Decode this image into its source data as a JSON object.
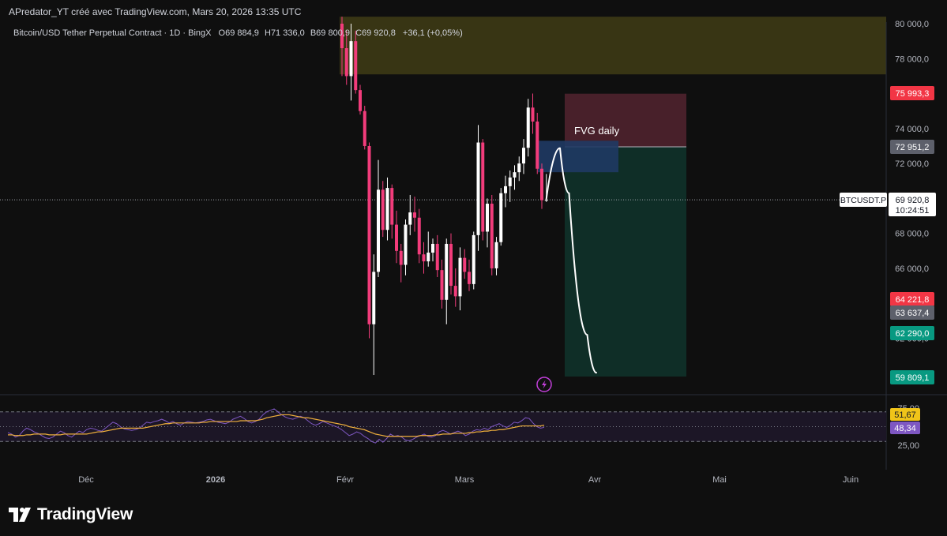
{
  "header": {
    "author_line": "APredator_YT créé avec TradingView.com, Mars 20, 2026 13:35 UTC"
  },
  "symbol_info": {
    "title": "Bitcoin/USD Tether Perpetual Contract · 1D · BingX",
    "o_label": "O",
    "o_value": "69 884,9",
    "h_label": "H",
    "h_value": "71 336,0",
    "b_label": "B",
    "b_value": "69 800,9",
    "c_label": "C",
    "c_value": "69 920,8",
    "change": "+36,1 (+0,05%)"
  },
  "annotations": {
    "fvg_label": "FVG daily"
  },
  "price_labels": {
    "top": "75 993,3",
    "mid": "72 951,2",
    "symbol": "BTCUSDT.P",
    "current": "69 920,8",
    "countdown": "10:24:51",
    "red2": "64 221,8",
    "gray2": "63 637,4",
    "green1": "62 290,0",
    "green2": "59 809,1"
  },
  "rsi": {
    "value_ma": "51,67",
    "value_rsi": "48,34"
  },
  "brand": {
    "logo_text": "TradingView",
    "logo_icon": "tradingview-logo-icon"
  },
  "colors": {
    "background": "#0f0f0f",
    "up_candle": "#ffffff",
    "down_candle": "#f23c7b",
    "stop_zone": "#4a1a24",
    "target_zone": "#0f2e27",
    "supply_zone": "#3d3a14",
    "fvg_box": "#1e3559",
    "rsi_line": "#7e57c2",
    "rsi_ma": "#f0b03c"
  },
  "chart_data": {
    "type": "candlestick",
    "symbol": "BTCUSDT.P",
    "timeframe": "1D",
    "exchange": "BingX",
    "price_axis_ticks": [
      "80 000,0",
      "78 000,0",
      "74 000,0",
      "72 000,0",
      "68 000,0",
      "66 000,0",
      "62 000,0",
      "60 000,0"
    ],
    "price_axis_values": [
      80000,
      78000,
      74000,
      72000,
      68000,
      66000,
      62000,
      60000
    ],
    "time_axis_labels": [
      "Déc",
      "2026",
      "Févr",
      "Mars",
      "Avr",
      "Mai",
      "Juin"
    ],
    "ylim": [
      57500,
      80400
    ],
    "candles_date_range": [
      "2026-01-28",
      "2026-03-20"
    ],
    "candles": [
      {
        "o": 80000,
        "h": 80400,
        "l": 77000,
        "c": 78600
      },
      {
        "o": 78600,
        "h": 79600,
        "l": 76500,
        "c": 77000
      },
      {
        "o": 77000,
        "h": 80000,
        "l": 75600,
        "c": 79000
      },
      {
        "o": 79000,
        "h": 79600,
        "l": 76000,
        "c": 76200
      },
      {
        "o": 76200,
        "h": 76500,
        "l": 74800,
        "c": 75000
      },
      {
        "o": 75000,
        "h": 75300,
        "l": 72800,
        "c": 73000
      },
      {
        "o": 73000,
        "h": 73200,
        "l": 62000,
        "c": 62800
      },
      {
        "o": 62800,
        "h": 66800,
        "l": 59900,
        "c": 65800
      },
      {
        "o": 65800,
        "h": 72200,
        "l": 65500,
        "c": 70500
      },
      {
        "o": 70500,
        "h": 71000,
        "l": 67800,
        "c": 68200
      },
      {
        "o": 68200,
        "h": 71200,
        "l": 67600,
        "c": 70600
      },
      {
        "o": 70600,
        "h": 70800,
        "l": 67700,
        "c": 68500
      },
      {
        "o": 68500,
        "h": 69300,
        "l": 66300,
        "c": 67000
      },
      {
        "o": 67000,
        "h": 67400,
        "l": 65200,
        "c": 66200
      },
      {
        "o": 66200,
        "h": 68800,
        "l": 65600,
        "c": 68500
      },
      {
        "o": 68500,
        "h": 70200,
        "l": 67900,
        "c": 69200
      },
      {
        "o": 69200,
        "h": 70100,
        "l": 68100,
        "c": 68900
      },
      {
        "o": 68900,
        "h": 69400,
        "l": 66300,
        "c": 66800
      },
      {
        "o": 66800,
        "h": 67500,
        "l": 65700,
        "c": 66400
      },
      {
        "o": 66400,
        "h": 68100,
        "l": 66100,
        "c": 66900
      },
      {
        "o": 66900,
        "h": 67700,
        "l": 66400,
        "c": 67400
      },
      {
        "o": 67400,
        "h": 67900,
        "l": 65500,
        "c": 65900
      },
      {
        "o": 65900,
        "h": 66500,
        "l": 63700,
        "c": 64200
      },
      {
        "o": 64200,
        "h": 67700,
        "l": 62800,
        "c": 67400
      },
      {
        "o": 67400,
        "h": 68000,
        "l": 64500,
        "c": 65000
      },
      {
        "o": 65000,
        "h": 66000,
        "l": 63800,
        "c": 64400
      },
      {
        "o": 64400,
        "h": 67200,
        "l": 63600,
        "c": 66600
      },
      {
        "o": 66600,
        "h": 67100,
        "l": 65400,
        "c": 65800
      },
      {
        "o": 65800,
        "h": 66500,
        "l": 64700,
        "c": 65100
      },
      {
        "o": 65100,
        "h": 68100,
        "l": 64800,
        "c": 67900
      },
      {
        "o": 67900,
        "h": 74200,
        "l": 67000,
        "c": 73200
      },
      {
        "o": 73200,
        "h": 73400,
        "l": 67600,
        "c": 68100
      },
      {
        "o": 68100,
        "h": 70000,
        "l": 67200,
        "c": 69700
      },
      {
        "o": 69700,
        "h": 70200,
        "l": 65600,
        "c": 66000
      },
      {
        "o": 66000,
        "h": 67800,
        "l": 65600,
        "c": 67500
      },
      {
        "o": 67500,
        "h": 70600,
        "l": 67300,
        "c": 70300
      },
      {
        "o": 70300,
        "h": 71300,
        "l": 69500,
        "c": 70700
      },
      {
        "o": 70700,
        "h": 71600,
        "l": 69800,
        "c": 71200
      },
      {
        "o": 71200,
        "h": 71900,
        "l": 70500,
        "c": 71500
      },
      {
        "o": 71500,
        "h": 72400,
        "l": 71000,
        "c": 72000
      },
      {
        "o": 72000,
        "h": 73400,
        "l": 71400,
        "c": 72900
      },
      {
        "o": 72900,
        "h": 75700,
        "l": 72400,
        "c": 75200
      },
      {
        "o": 75200,
        "h": 76000,
        "l": 73700,
        "c": 74400
      },
      {
        "o": 74400,
        "h": 74900,
        "l": 71400,
        "c": 71700
      },
      {
        "o": 71700,
        "h": 72000,
        "l": 69400,
        "c": 69900
      },
      {
        "o": 69900,
        "h": 71400,
        "l": 69800,
        "c": 69920
      }
    ],
    "current_price": 69920.8,
    "zones": [
      {
        "name": "supply-zone",
        "y_top": 80400,
        "y_bottom": 77100
      },
      {
        "name": "stop-zone",
        "y_top": 75993.3,
        "y_bottom": 72951.2
      },
      {
        "name": "target-zone",
        "y_top": 72951.2,
        "y_bottom": 59809.1
      },
      {
        "name": "fvg-zone",
        "y_top": 73300,
        "y_bottom": 71500
      }
    ],
    "projection_path": [
      [
        0,
        69980
      ],
      [
        3,
        72880
      ],
      [
        5,
        70300
      ],
      [
        9,
        62200
      ],
      [
        11,
        60030
      ]
    ],
    "rsi": {
      "ylim": [
        25,
        75
      ],
      "levels": [
        70,
        50,
        30
      ],
      "level_labels": [
        "75,00",
        "25,00"
      ],
      "rsi_last": 48.34,
      "ma_last": 51.67,
      "rsi_values": [
        42,
        40,
        36,
        38,
        44,
        48,
        46,
        43,
        41,
        38,
        35,
        34,
        36,
        40,
        44,
        42,
        38,
        36,
        40,
        44,
        42,
        46,
        48,
        47,
        45,
        44,
        48,
        52,
        56,
        54,
        50,
        47,
        46,
        45,
        46,
        48,
        52,
        56,
        55,
        57,
        58,
        60,
        58,
        55,
        57,
        54,
        52,
        55,
        57,
        56,
        55,
        56,
        57,
        59,
        60,
        58,
        56,
        55,
        54,
        56,
        60,
        62,
        64,
        61,
        57,
        55,
        57,
        60,
        66,
        70,
        72,
        74,
        70,
        66,
        63,
        61,
        60,
        62,
        64,
        62,
        58,
        54,
        52,
        54,
        57,
        55,
        53,
        51,
        49,
        46,
        42,
        38,
        40,
        43,
        41,
        37,
        34,
        30,
        28,
        33,
        29,
        34,
        40,
        37,
        38,
        36,
        32,
        31,
        33,
        36,
        38,
        40,
        37,
        36,
        38,
        43,
        45,
        43,
        40,
        42,
        44,
        42,
        38,
        40,
        44,
        46,
        45,
        48,
        46,
        50,
        52,
        54,
        51,
        49,
        52,
        56,
        55,
        58,
        62,
        61,
        55,
        50,
        48,
        49
      ],
      "ma_values": [
        39,
        39,
        38,
        38,
        38,
        39,
        39,
        40,
        40,
        40,
        40,
        39,
        39,
        39,
        39,
        40,
        40,
        40,
        40,
        40,
        40,
        40,
        41,
        42,
        43,
        43,
        44,
        45,
        46,
        47,
        48,
        48,
        48,
        48,
        48,
        48,
        48,
        49,
        50,
        51,
        52,
        53,
        54,
        54,
        55,
        55,
        55,
        55,
        55,
        55,
        55,
        55,
        56,
        56,
        57,
        57,
        57,
        57,
        57,
        57,
        57,
        57,
        58,
        58,
        58,
        58,
        58,
        59,
        60,
        62,
        63,
        64,
        65,
        66,
        66,
        66,
        65,
        64,
        63,
        62,
        62,
        61,
        60,
        59,
        58,
        57,
        56,
        55,
        54,
        53,
        52,
        50,
        49,
        48,
        47,
        46,
        44,
        42,
        40,
        39,
        38,
        37,
        37,
        37,
        37,
        37,
        37,
        37,
        37,
        37,
        38,
        38,
        38,
        38,
        39,
        39,
        40,
        40,
        40,
        41,
        41,
        41,
        41,
        42,
        42,
        43,
        43,
        44,
        44,
        45,
        45,
        46,
        46,
        47,
        48,
        49,
        50,
        51,
        51,
        51,
        51,
        51,
        51,
        52
      ]
    }
  }
}
